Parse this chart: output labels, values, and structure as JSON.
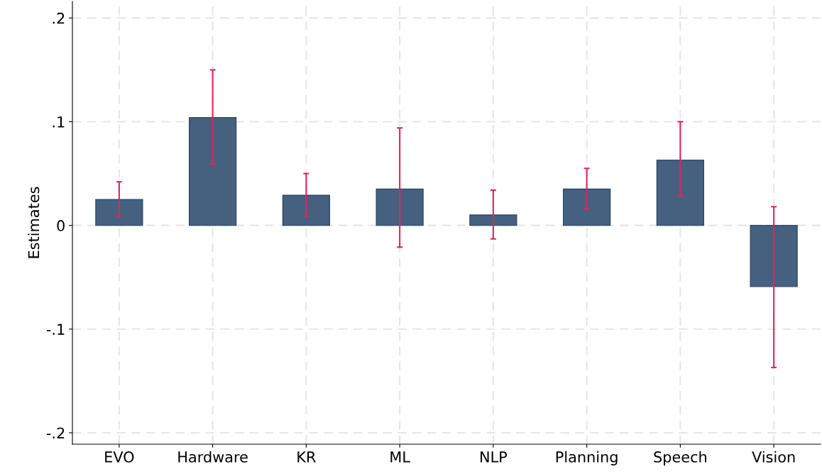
{
  "chart_data": {
    "type": "bar",
    "ylabel": "Estimates",
    "categories": [
      "EVO",
      "Hardware",
      "KR",
      "ML",
      "NLP",
      "Planning",
      "Speech",
      "Vision"
    ],
    "values": [
      0.025,
      0.104,
      0.029,
      0.035,
      0.01,
      0.035,
      0.063,
      -0.059
    ],
    "errors": [
      [
        0.009,
        0.042
      ],
      [
        0.059,
        0.15
      ],
      [
        0.009,
        0.05
      ],
      [
        -0.021,
        0.094
      ],
      [
        -0.013,
        0.034
      ],
      [
        0.016,
        0.055
      ],
      [
        0.028,
        0.1
      ],
      [
        -0.137,
        0.018
      ]
    ],
    "color": "#46617f",
    "ylim": [
      -0.211,
      0.216
    ],
    "yticks": [
      {
        "value": -0.2,
        "label": "-.2"
      },
      {
        "value": -0.1,
        "label": "-.1"
      },
      {
        "value": 0,
        "label": "0"
      },
      {
        "value": 0.1,
        "label": ".1"
      },
      {
        "value": 0.2,
        "label": ".2"
      }
    ],
    "grid": true
  }
}
